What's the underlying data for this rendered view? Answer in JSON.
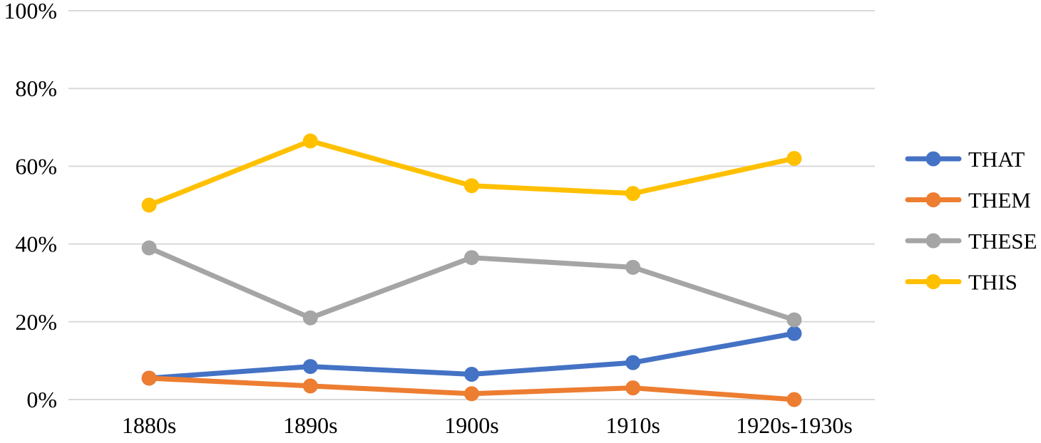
{
  "chart_data": {
    "type": "line",
    "title": "",
    "xlabel": "",
    "ylabel": "",
    "categories": [
      "1880s",
      "1890s",
      "1900s",
      "1910s",
      "1920s-1930s"
    ],
    "series": [
      {
        "name": "THAT",
        "color": "#4472C4",
        "values": [
          5.5,
          8.5,
          6.5,
          9.5,
          17
        ]
      },
      {
        "name": "THEM",
        "color": "#ED7D31",
        "values": [
          5.5,
          3.5,
          1.5,
          3,
          0
        ]
      },
      {
        "name": "THESE",
        "color": "#A5A5A5",
        "values": [
          39,
          21,
          36.5,
          34,
          20.5
        ]
      },
      {
        "name": "THIS",
        "color": "#FFC000",
        "values": [
          50,
          66.5,
          55,
          53,
          62
        ]
      }
    ],
    "ylim": [
      0,
      100
    ],
    "yticks": [
      0,
      20,
      40,
      60,
      80,
      100
    ],
    "ytick_labels": [
      "0%",
      "20%",
      "40%",
      "60%",
      "80%",
      "100%"
    ],
    "grid": "horizontal",
    "gridline_color": "#D9D9D9",
    "legend_position": "right",
    "marker": "circle",
    "background_color": "#FFFFFF",
    "text_color": "#000000"
  }
}
